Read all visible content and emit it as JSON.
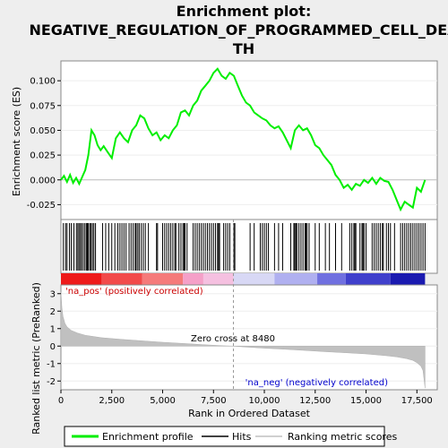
{
  "chart_data": {
    "type": "line",
    "title_line1": "Enrichment plot:",
    "title_line2": "NEGATIVE_REGULATION_OF_PROGRAMMED_CELL_DEA",
    "title_line3": "TH",
    "es_panel": {
      "ylabel": "Enrichment score (ES)",
      "ylim": [
        -0.04,
        0.12
      ],
      "yticks": [
        -0.025,
        0.0,
        0.025,
        0.05,
        0.075,
        0.1
      ],
      "ytick_labels": [
        "-0.025",
        "0.000",
        "0.025",
        "0.050",
        "0.075",
        "0.100"
      ],
      "series_name": "Enrichment profile",
      "color": "#00ee00",
      "x": [
        0,
        150,
        300,
        450,
        600,
        750,
        900,
        1050,
        1200,
        1350,
        1500,
        1650,
        1800,
        1950,
        2100,
        2300,
        2500,
        2700,
        2900,
        3100,
        3300,
        3500,
        3700,
        3900,
        4100,
        4300,
        4500,
        4700,
        4900,
        5100,
        5300,
        5500,
        5700,
        5900,
        6100,
        6300,
        6500,
        6700,
        6900,
        7100,
        7300,
        7500,
        7700,
        7900,
        8100,
        8300,
        8500,
        8700,
        8900,
        9100,
        9300,
        9500,
        9700,
        9900,
        10100,
        10300,
        10500,
        10700,
        10900,
        11100,
        11300,
        11500,
        11700,
        11900,
        12100,
        12300,
        12500,
        12700,
        12900,
        13100,
        13300,
        13500,
        13700,
        13900,
        14100,
        14300,
        14500,
        14700,
        14900,
        15100,
        15300,
        15500,
        15700,
        15900,
        16100,
        16300,
        16500,
        16700,
        16900,
        17100,
        17300,
        17500,
        17700,
        17900
      ],
      "y": [
        0.0,
        0.004,
        -0.002,
        0.005,
        -0.003,
        0.002,
        -0.004,
        0.003,
        0.01,
        0.025,
        0.05,
        0.045,
        0.035,
        0.03,
        0.034,
        0.028,
        0.022,
        0.042,
        0.048,
        0.042,
        0.038,
        0.05,
        0.055,
        0.065,
        0.062,
        0.052,
        0.045,
        0.048,
        0.04,
        0.045,
        0.042,
        0.05,
        0.055,
        0.068,
        0.07,
        0.065,
        0.075,
        0.08,
        0.09,
        0.095,
        0.1,
        0.108,
        0.112,
        0.105,
        0.102,
        0.108,
        0.105,
        0.095,
        0.085,
        0.078,
        0.075,
        0.068,
        0.065,
        0.062,
        0.06,
        0.055,
        0.052,
        0.054,
        0.048,
        0.04,
        0.032,
        0.05,
        0.055,
        0.05,
        0.052,
        0.045,
        0.035,
        0.032,
        0.025,
        0.02,
        0.015,
        0.005,
        0.0,
        -0.008,
        -0.005,
        -0.01,
        -0.004,
        -0.006,
        0.0,
        -0.003,
        0.002,
        -0.004,
        0.002,
        -0.001,
        -0.002,
        -0.01,
        -0.02,
        -0.03,
        -0.022,
        -0.025,
        -0.028,
        -0.008,
        -0.012,
        0.0
      ]
    },
    "hits": {
      "series_name": "Hits",
      "positions": [
        120,
        230,
        300,
        420,
        510,
        640,
        760,
        830,
        890,
        960,
        1020,
        1100,
        1180,
        1250,
        1300,
        1350,
        1420,
        1480,
        1550,
        1620,
        1700,
        2050,
        2200,
        2350,
        2500,
        2650,
        2800,
        2900,
        3000,
        3100,
        3200,
        3350,
        3450,
        3550,
        3650,
        3700,
        3780,
        3850,
        3950,
        4050,
        4150,
        4300,
        4700,
        4750,
        5000,
        5100,
        5200,
        5300,
        5400,
        5500,
        5600,
        5650,
        5800,
        5900,
        6000,
        6050,
        6100,
        6200,
        6500,
        6600,
        6700,
        6800,
        6900,
        7000,
        7100,
        7200,
        7300,
        7400,
        7500,
        7600,
        7700,
        7750,
        7800,
        8000,
        8100,
        8200,
        8300,
        8500,
        8550,
        9300,
        9500,
        9800,
        9900,
        10000,
        10100,
        10200,
        10500,
        10700,
        10900,
        11300,
        11450,
        11500,
        11550,
        11600,
        11700,
        11800,
        11900,
        12000,
        12050,
        12100,
        12200,
        12500,
        12700,
        13000,
        13200,
        13500,
        13800,
        14200,
        14300,
        14400,
        14450,
        14500,
        14700,
        14800,
        14850,
        14900,
        15000,
        15300,
        15400,
        15500,
        15600,
        15700,
        15800,
        15850,
        16000,
        16100,
        16200,
        16400,
        16700,
        16800,
        16900,
        17000,
        17100,
        17200,
        17300,
        17400,
        17500,
        17600,
        17700,
        17800,
        17900
      ]
    },
    "rank_bar": {
      "segments": [
        {
          "from": 0,
          "to": 2000,
          "color": "#ee1a1a"
        },
        {
          "from": 2000,
          "to": 4000,
          "color": "#f24a4a"
        },
        {
          "from": 4000,
          "to": 6000,
          "color": "#f57a7a"
        },
        {
          "from": 6000,
          "to": 7000,
          "color": "#f5a0c8"
        },
        {
          "from": 7000,
          "to": 8480,
          "color": "#f5c0e0"
        },
        {
          "from": 8480,
          "to": 10500,
          "color": "#d8d8f5"
        },
        {
          "from": 10500,
          "to": 12600,
          "color": "#b0b0f0"
        },
        {
          "from": 12600,
          "to": 14000,
          "color": "#7070e0"
        },
        {
          "from": 14000,
          "to": 16200,
          "color": "#4040cc"
        },
        {
          "from": 16200,
          "to": 17900,
          "color": "#1a1ab0"
        }
      ]
    },
    "metric_panel": {
      "ylabel": "Ranked list metric (PreRanked)",
      "ylim": [
        -2.5,
        3.5
      ],
      "yticks": [
        -2,
        -1,
        0,
        1,
        2,
        3
      ],
      "ytick_labels": [
        "-2",
        "-1",
        "0",
        "1",
        "2",
        "3"
      ],
      "series_name": "Ranking metric scores",
      "x": [
        0,
        50,
        100,
        200,
        300,
        500,
        800,
        1200,
        2000,
        3000,
        4000,
        5000,
        6000,
        7000,
        8000,
        8480,
        9000,
        10000,
        11000,
        12000,
        13000,
        14000,
        15000,
        16000,
        16500,
        17000,
        17300,
        17500,
        17700,
        17800,
        17900
      ],
      "y": [
        3.1,
        2.2,
        1.7,
        1.3,
        1.1,
        0.9,
        0.75,
        0.62,
        0.48,
        0.38,
        0.3,
        0.22,
        0.15,
        0.08,
        0.02,
        0.0,
        -0.05,
        -0.12,
        -0.18,
        -0.25,
        -0.32,
        -0.38,
        -0.45,
        -0.55,
        -0.62,
        -0.72,
        -0.82,
        -0.95,
        -1.15,
        -1.4,
        -2.4
      ],
      "zero_cross_label": "Zero cross at 8480",
      "zero_cross": 8480,
      "pos_label": "'na_pos' (positively correlated)",
      "neg_label": "'na_neg' (negatively correlated)"
    },
    "xaxis": {
      "xlabel": "Rank in Ordered Dataset",
      "xlim": [
        0,
        18500
      ],
      "xticks": [
        0,
        2500,
        5000,
        7500,
        10000,
        12500,
        15000,
        17500
      ],
      "xtick_labels": [
        "0",
        "2,500",
        "5,000",
        "7,500",
        "10,000",
        "12,500",
        "15,000",
        "17,500"
      ]
    },
    "legend": {
      "placement": "bottom",
      "items": [
        {
          "label": "Enrichment profile",
          "color": "#00ee00"
        },
        {
          "label": "Hits",
          "color": "#000000"
        },
        {
          "label": "Ranking metric scores",
          "color": "#c0c0c0"
        }
      ]
    }
  }
}
